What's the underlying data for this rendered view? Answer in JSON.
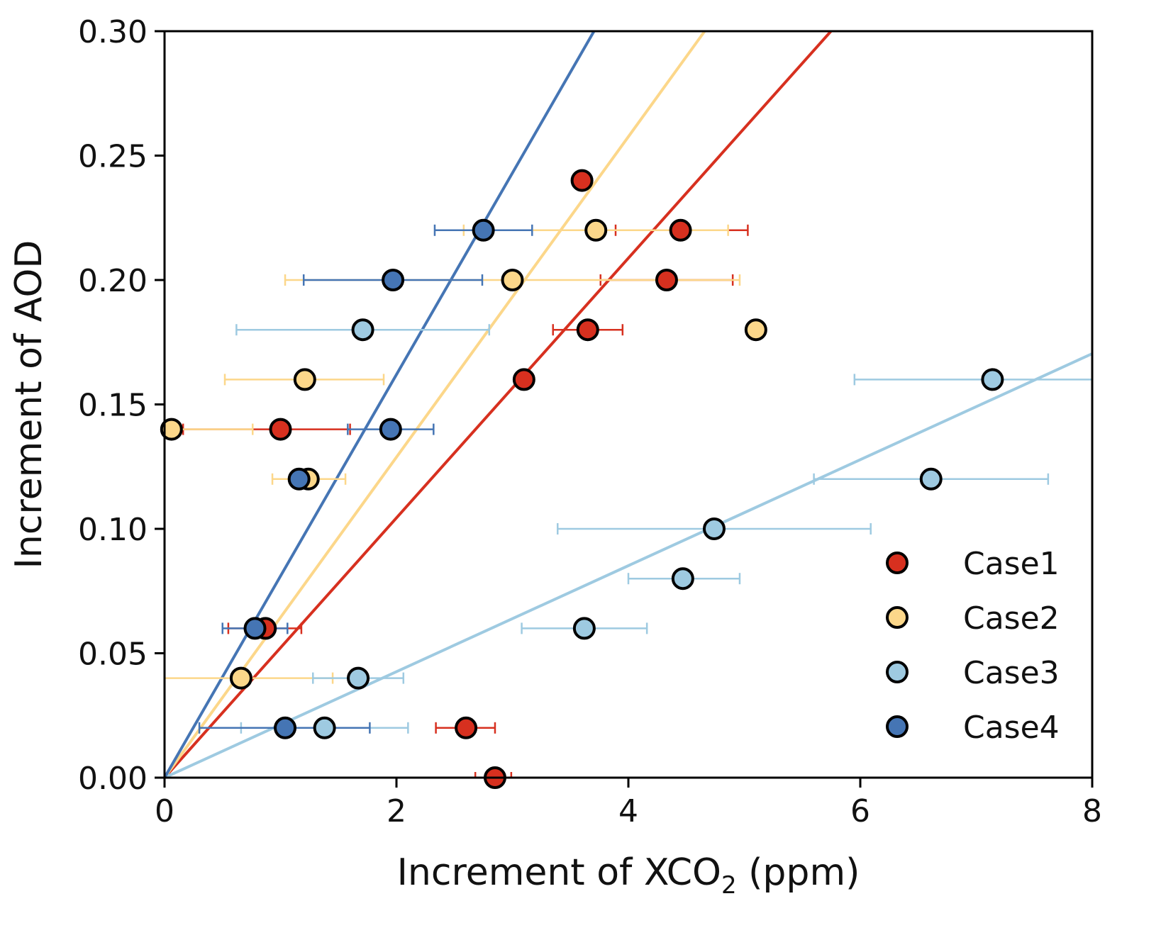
{
  "chart_data": {
    "type": "scatter",
    "xlabel": "Increment of XCO",
    "xlabel_subscript": "2",
    "xlabel_suffix": " (ppm)",
    "ylabel": "Increment of AOD",
    "xlim": [
      0,
      8
    ],
    "ylim": [
      0,
      0.3
    ],
    "x_ticks": [
      0,
      2,
      4,
      6,
      8
    ],
    "x_tick_labels": [
      "0",
      "2",
      "4",
      "6",
      "8"
    ],
    "y_ticks": [
      0,
      0.05,
      0.1,
      0.15,
      0.2,
      0.25,
      0.3
    ],
    "y_tick_labels": [
      "0.00",
      "0.05",
      "0.10",
      "0.15",
      "0.20",
      "0.25",
      "0.30"
    ],
    "grid": false,
    "legend_position": "bottom-right",
    "series": [
      {
        "name": "Case1",
        "color": "#d7301f",
        "fit_slope": 0.0522,
        "points": [
          {
            "x": 2.85,
            "y": 0.0,
            "xerr": [
              2.68,
              2.99
            ]
          },
          {
            "x": 2.6,
            "y": 0.02,
            "xerr": [
              2.34,
              2.85
            ]
          },
          {
            "x": 0.87,
            "y": 0.06,
            "xerr": [
              0.55,
              1.18
            ]
          },
          {
            "x": 1.0,
            "y": 0.14,
            "xerr": [
              0.16,
              1.6
            ]
          },
          {
            "x": 3.1,
            "y": 0.16
          },
          {
            "x": 3.65,
            "y": 0.18,
            "xerr": [
              3.35,
              3.95
            ]
          },
          {
            "x": 4.33,
            "y": 0.2,
            "xerr": [
              3.76,
              4.9
            ]
          },
          {
            "x": 4.45,
            "y": 0.22,
            "xerr": [
              3.89,
              5.03
            ]
          },
          {
            "x": 3.6,
            "y": 0.24
          }
        ]
      },
      {
        "name": "Case2",
        "color": "#fcd78a",
        "fit_slope": 0.0644,
        "points": [
          {
            "x": 0.66,
            "y": 0.04,
            "xerr": [
              0.0,
              1.45
            ]
          },
          {
            "x": 0.06,
            "y": 0.14,
            "xerr": [
              0.0,
              0.76
            ]
          },
          {
            "x": 1.21,
            "y": 0.16,
            "xerr": [
              0.52,
              1.89
            ]
          },
          {
            "x": 1.24,
            "y": 0.12,
            "xerr": [
              0.93,
              1.56
            ]
          },
          {
            "x": 3.0,
            "y": 0.2,
            "xerr": [
              1.04,
              4.96
            ]
          },
          {
            "x": 3.72,
            "y": 0.22,
            "xerr": [
              2.58,
              4.86
            ]
          },
          {
            "x": 5.1,
            "y": 0.18
          }
        ]
      },
      {
        "name": "Case3",
        "color": "#9ecae1",
        "fit_slope": 0.0213,
        "points": [
          {
            "x": 1.38,
            "y": 0.02,
            "xerr": [
              0.66,
              2.1
            ]
          },
          {
            "x": 1.67,
            "y": 0.04,
            "xerr": [
              1.28,
              2.06
            ]
          },
          {
            "x": 3.62,
            "y": 0.06,
            "xerr": [
              3.08,
              4.16
            ]
          },
          {
            "x": 4.47,
            "y": 0.08,
            "xerr": [
              4.0,
              4.96
            ]
          },
          {
            "x": 4.74,
            "y": 0.1,
            "xerr": [
              3.39,
              6.09
            ]
          },
          {
            "x": 6.61,
            "y": 0.12,
            "xerr": [
              5.6,
              7.62
            ]
          },
          {
            "x": 7.14,
            "y": 0.16,
            "xerr": [
              5.95,
              8.0
            ]
          },
          {
            "x": 1.71,
            "y": 0.18,
            "xerr": [
              0.62,
              2.8
            ]
          }
        ]
      },
      {
        "name": "Case4",
        "color": "#4575b4",
        "fit_slope": 0.081,
        "points": [
          {
            "x": 1.04,
            "y": 0.02,
            "xerr": [
              0.3,
              1.77
            ]
          },
          {
            "x": 0.78,
            "y": 0.06,
            "xerr": [
              0.5,
              1.06
            ]
          },
          {
            "x": 1.16,
            "y": 0.12
          },
          {
            "x": 1.95,
            "y": 0.14,
            "xerr": [
              1.58,
              2.32
            ]
          },
          {
            "x": 1.97,
            "y": 0.2,
            "xerr": [
              1.2,
              2.74
            ]
          },
          {
            "x": 2.75,
            "y": 0.22,
            "xerr": [
              2.33,
              3.17
            ]
          }
        ]
      }
    ]
  }
}
